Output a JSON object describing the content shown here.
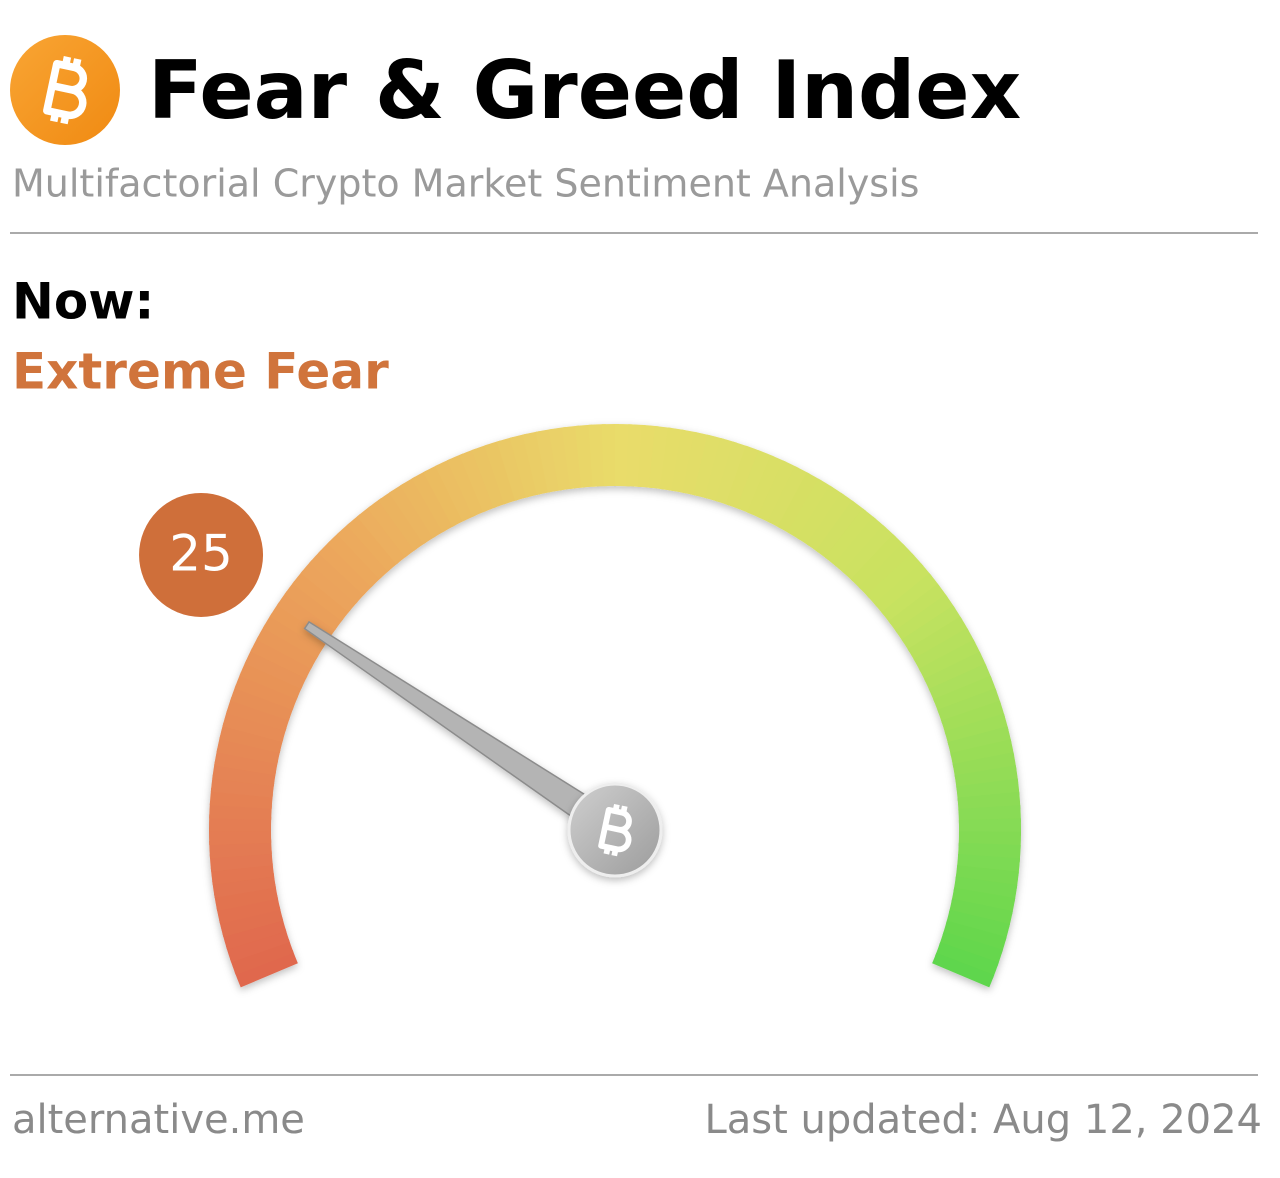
{
  "chart_data": {
    "type": "gauge",
    "title": "Fear & Greed Index",
    "subtitle": "Multifactorial Crypto Market Sentiment Analysis",
    "label": "Now:",
    "classification": "Extreme Fear",
    "value": 25,
    "ylim": [
      0,
      100
    ],
    "color": "#cf6f3a",
    "source": "alternative.me",
    "updated": "Last updated: Aug 12, 2024"
  }
}
